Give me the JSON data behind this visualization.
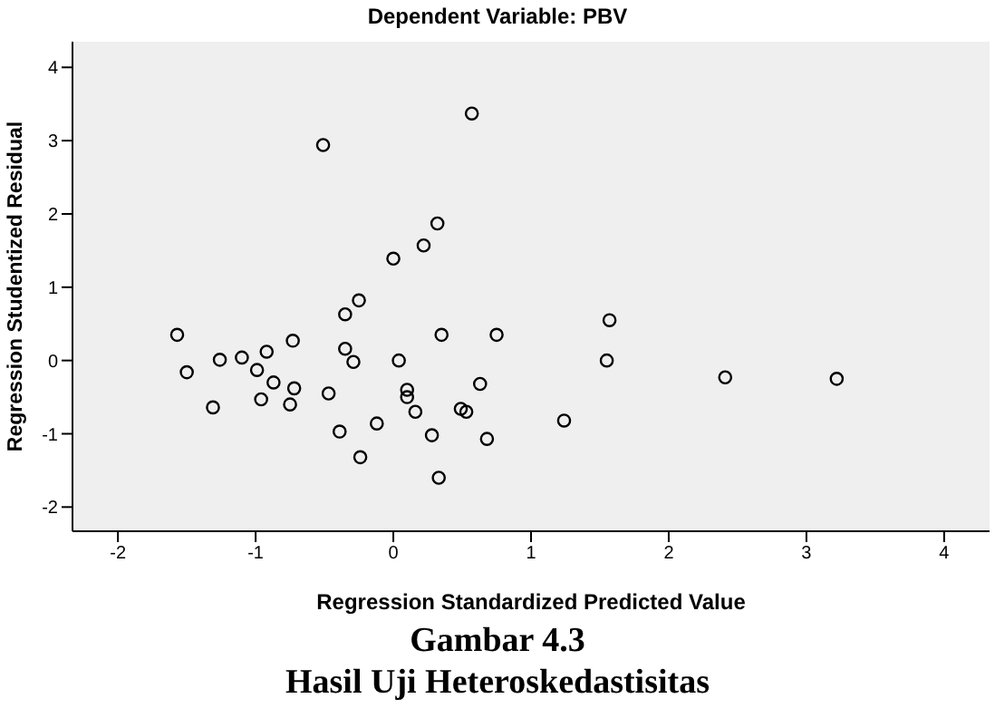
{
  "chart_data": {
    "type": "scatter",
    "title": "Dependent Variable: PBV",
    "xlabel": "Regression Standardized Predicted Value",
    "ylabel": "Regression Studentized Residual",
    "annotations": [
      "Gambar 4.3",
      "Hasil Uji Heteroskedastisitas"
    ],
    "x": [
      -1.57,
      -1.5,
      -1.31,
      -1.26,
      -1.1,
      -0.99,
      -0.92,
      -0.96,
      -0.87,
      -0.73,
      -0.72,
      -0.75,
      -0.51,
      -0.47,
      -0.39,
      -0.35,
      -0.35,
      -0.29,
      -0.25,
      -0.24,
      -0.12,
      0.0,
      0.04,
      0.1,
      0.1,
      0.16,
      0.22,
      0.28,
      0.32,
      0.33,
      0.35,
      0.57,
      0.49,
      0.53,
      0.63,
      0.68,
      0.75,
      1.57,
      1.55,
      1.24,
      2.41,
      3.22
    ],
    "values": [
      0.35,
      -0.16,
      -0.64,
      0.01,
      0.04,
      -0.13,
      0.12,
      -0.53,
      -0.3,
      0.27,
      -0.38,
      -0.6,
      2.94,
      -0.45,
      -0.97,
      0.63,
      0.16,
      -0.02,
      0.82,
      -1.32,
      -0.86,
      1.39,
      0.0,
      -0.4,
      -0.5,
      -0.7,
      1.57,
      -1.02,
      1.87,
      -1.6,
      0.35,
      3.37,
      -0.66,
      -0.7,
      -0.32,
      -1.07,
      0.35,
      0.55,
      0.0,
      -0.82,
      -0.23,
      -0.25
    ],
    "color": "#000000",
    "marker": "circle",
    "xlim": [
      -2.33,
      4.33
    ],
    "xticks": [
      -2,
      -1,
      0,
      1,
      2,
      3,
      4
    ],
    "ylim": [
      -2.33,
      4.35
    ],
    "yticks": [
      -2,
      -1,
      0,
      1,
      2,
      3,
      4
    ],
    "grid": false,
    "legend": false
  }
}
